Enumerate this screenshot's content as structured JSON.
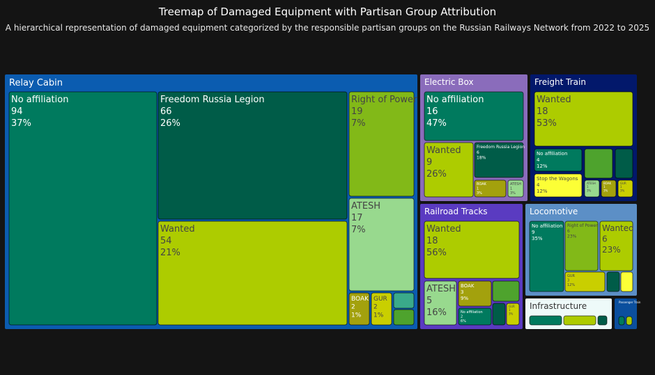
{
  "chart_data": {
    "type": "treemap",
    "title": "Treemap of Damaged Equipment with Partisan Group Attribution",
    "subtitle": "A hierarchical representation of damaged equipment categorized by the responsible partisan groups on the Russian Railways Network from 2022 to 2025",
    "value_format": "value and percent of parent",
    "categories": [
      {
        "name": "Relay Cabin",
        "color": "#0b5cb0",
        "children": [
          {
            "name": "No affiliation",
            "value": 94,
            "percent": "37%",
            "color": "#007a5e"
          },
          {
            "name": "Freedom Russia Legion",
            "value": 66,
            "percent": "26%",
            "color": "#005c48"
          },
          {
            "name": "Wanted",
            "value": 54,
            "percent": "21%",
            "color": "#adcc00"
          },
          {
            "name": "Right of Power",
            "value": 19,
            "percent": "7%",
            "color": "#82b918"
          },
          {
            "name": "ATESH",
            "value": 17,
            "percent": "7%",
            "color": "#98d98e"
          },
          {
            "name": "BOAK",
            "value": 2,
            "percent": "1%",
            "color": "#a3a10d"
          },
          {
            "name": "GUR",
            "value": 2,
            "percent": "1%",
            "color": "#c9cf00"
          },
          {
            "name": "",
            "value": null,
            "percent": "",
            "color": "#3aaa8a"
          },
          {
            "name": "",
            "value": null,
            "percent": "",
            "color": "#4ea32d"
          }
        ]
      },
      {
        "name": "Electric Box",
        "color": "#8a6cbb",
        "children": [
          {
            "name": "No affiliation",
            "value": 16,
            "percent": "47%",
            "color": "#007a5e"
          },
          {
            "name": "Wanted",
            "value": 9,
            "percent": "26%",
            "color": "#adcc00"
          },
          {
            "name": "Freedom Russia Legion",
            "value": 6,
            "percent": "18%",
            "color": "#005c48"
          },
          {
            "name": "BOAK",
            "value": 1,
            "percent": "3%",
            "color": "#a3a10d"
          },
          {
            "name": "ATESH",
            "value": 1,
            "percent": "3%",
            "color": "#98d98e"
          }
        ]
      },
      {
        "name": "Freight Train",
        "color": "#02186b",
        "children": [
          {
            "name": "Wanted",
            "value": 18,
            "percent": "53%",
            "color": "#adcc00"
          },
          {
            "name": "No affiliation",
            "value": 4,
            "percent": "12%",
            "color": "#007a5e"
          },
          {
            "name": "",
            "value": null,
            "percent": "",
            "color": "#4ea32d"
          },
          {
            "name": "",
            "value": null,
            "percent": "",
            "color": "#005c48"
          },
          {
            "name": "Stop the Wagons",
            "value": 4,
            "percent": "12%",
            "color": "#fcff36"
          },
          {
            "name": "ATESH",
            "value": 1,
            "percent": "3%",
            "color": "#98d98e"
          },
          {
            "name": "BOAK",
            "value": 1,
            "percent": "3%",
            "color": "#a3a10d"
          },
          {
            "name": "GUR",
            "value": 1,
            "percent": "3%",
            "color": "#c9cf00"
          }
        ]
      },
      {
        "name": "Railroad Tracks",
        "color": "#5a3bc1",
        "children": [
          {
            "name": "Wanted",
            "value": 18,
            "percent": "56%",
            "color": "#adcc00"
          },
          {
            "name": "ATESH",
            "value": 5,
            "percent": "16%",
            "color": "#98d98e"
          },
          {
            "name": "BOAK",
            "value": 3,
            "percent": "9%",
            "color": "#a3a10d"
          },
          {
            "name": "",
            "value": null,
            "percent": "",
            "color": "#4ea32d"
          },
          {
            "name": "No affiliation",
            "value": 2,
            "percent": "6%",
            "color": "#007a5e"
          },
          {
            "name": "",
            "value": null,
            "percent": "",
            "color": "#005c48"
          },
          {
            "name": "GUR",
            "value": 1,
            "percent": "3%",
            "color": "#c9cf00"
          }
        ]
      },
      {
        "name": "Locomotive",
        "color": "#5c8fc6",
        "children": [
          {
            "name": "No affiliation",
            "value": 9,
            "percent": "35%",
            "color": "#007a5e"
          },
          {
            "name": "Right of Power",
            "value": 6,
            "percent": "23%",
            "color": "#82b918"
          },
          {
            "name": "Wanted",
            "value": 6,
            "percent": "23%",
            "color": "#adcc00"
          },
          {
            "name": "GUR",
            "value": 3,
            "percent": "12%",
            "color": "#c9cf00"
          },
          {
            "name": "",
            "value": null,
            "percent": "",
            "color": "#005c48"
          },
          {
            "name": "",
            "value": null,
            "percent": "",
            "color": "#fcff36"
          }
        ]
      },
      {
        "name": "Infrastructure",
        "color": "#eefaf9",
        "children": [
          {
            "name": "",
            "value": null,
            "percent": "",
            "color": "#007a5e"
          },
          {
            "name": "",
            "value": null,
            "percent": "",
            "color": "#adcc00"
          },
          {
            "name": "",
            "value": null,
            "percent": "",
            "color": "#005c48"
          }
        ]
      },
      {
        "name": "Passenger Train",
        "color": "#0b4f9e",
        "children": [
          {
            "name": "",
            "value": null,
            "percent": "",
            "color": "#007a5e"
          },
          {
            "name": "",
            "value": null,
            "percent": "",
            "color": "#adcc00"
          }
        ]
      }
    ]
  }
}
